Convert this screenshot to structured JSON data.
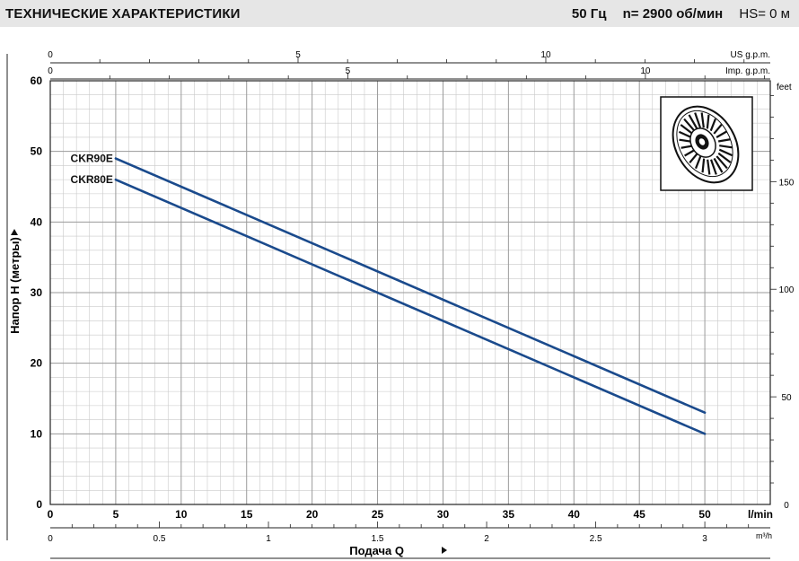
{
  "header": {
    "title": "ТЕХНИЧЕСКИЕ ХАРАКТЕРИСТИКИ",
    "freq": "50 Гц",
    "speed": "n= 2900  об/мин",
    "hs": "HS= 0 м"
  },
  "chart_data": {
    "type": "line",
    "xlabel": "Подача Q",
    "ylabel": "Напор H (метры)",
    "x_unit": "l/min",
    "xlim": [
      0,
      55
    ],
    "ylim": [
      0,
      60
    ],
    "x_ticks": [
      0,
      5,
      10,
      15,
      20,
      25,
      30,
      35,
      40,
      45,
      50
    ],
    "y_ticks": [
      0,
      10,
      20,
      30,
      40,
      50,
      60
    ],
    "grid": true,
    "series": [
      {
        "name": "CKR90E",
        "x": [
          5,
          50
        ],
        "y": [
          49,
          13
        ]
      },
      {
        "name": "CKR80E",
        "x": [
          5,
          50
        ],
        "y": [
          46,
          10
        ]
      }
    ],
    "secondary_axes": {
      "us_gpm": {
        "label": "US g.p.m.",
        "ticks": [
          0,
          5,
          10
        ]
      },
      "imp_gpm": {
        "label": "Imp. g.p.m.",
        "ticks": [
          0,
          5,
          10
        ]
      },
      "feet": {
        "label": "feet",
        "ticks": [
          0,
          50,
          100,
          150
        ]
      },
      "m3h": {
        "label": "m³/h",
        "ticks": [
          "0",
          "0.5",
          "1",
          "1.5",
          "2",
          "2.5",
          "3"
        ]
      }
    }
  },
  "colors": {
    "curve": "#1a4a8c",
    "grid": "#c9c9c9",
    "header_bg": "#e6e6e6"
  },
  "icons": {
    "impeller": "impeller-icon"
  }
}
